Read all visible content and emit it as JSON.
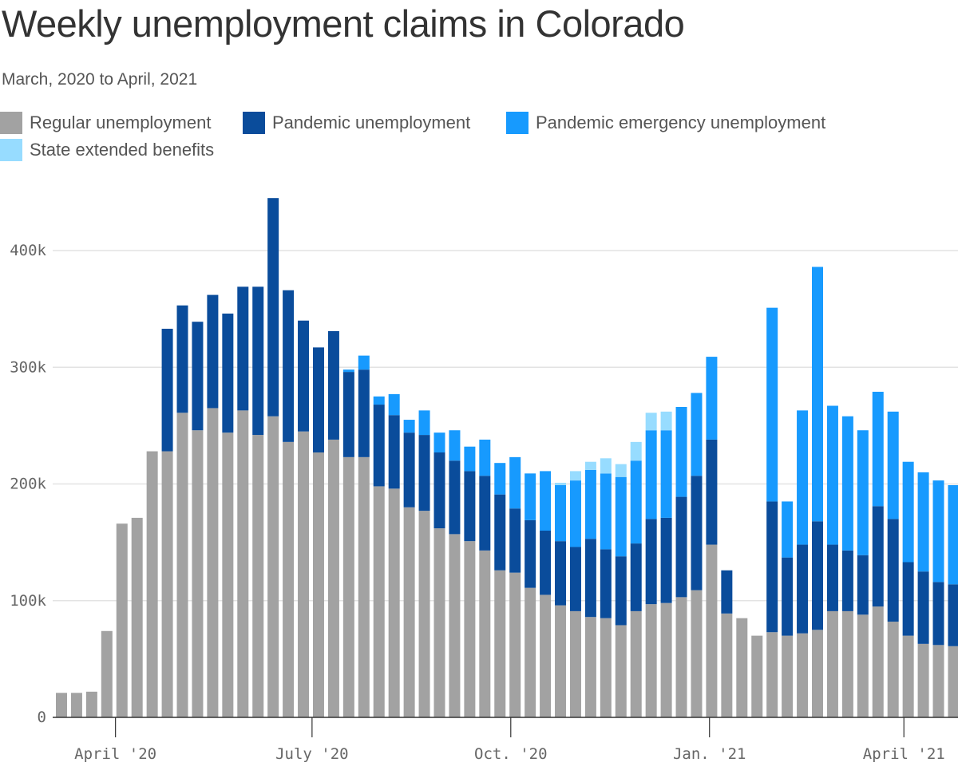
{
  "title": "Weekly unemployment claims in Colorado",
  "subtitle": "March, 2020 to April, 2021",
  "legend": [
    {
      "label": "Regular unemployment",
      "color": "#a2a2a2"
    },
    {
      "label": "Pandemic unemployment",
      "color": "#0a4c9b"
    },
    {
      "label": "Pandemic emergency unemployment",
      "color": "#179afe"
    },
    {
      "label": "State extended benefits",
      "color": "#97dcff"
    }
  ],
  "chart_data": {
    "type": "bar",
    "stacked": true,
    "title": "Weekly unemployment claims in Colorado",
    "subtitle": "March, 2020 to April, 2021",
    "xlabel": "",
    "ylabel": "",
    "ylim": [
      0,
      450000
    ],
    "y_ticks": [
      0,
      100000,
      200000,
      300000,
      400000
    ],
    "y_tick_labels": [
      "0",
      "100k",
      "200k",
      "300k",
      "400k"
    ],
    "x_tick_labels": [
      "April '20",
      "July '20",
      "Oct. '20",
      "Jan. '21",
      "April '21"
    ],
    "x_tick_dates": [
      "2020-04-01",
      "2020-07-01",
      "2020-10-01",
      "2021-01-01",
      "2021-04-01"
    ],
    "first_week": "2020-03-07",
    "grid": true,
    "legend_position": "top-left",
    "series": [
      {
        "name": "Regular unemployment",
        "color": "#a2a2a2",
        "values": [
          21000,
          21000,
          22000,
          74000,
          166000,
          171000,
          228000,
          228000,
          261000,
          246000,
          265000,
          244000,
          263000,
          242000,
          258000,
          236000,
          245000,
          227000,
          238000,
          223000,
          223000,
          198000,
          196000,
          180000,
          177000,
          162000,
          157000,
          151000,
          143000,
          126000,
          124000,
          111000,
          105000,
          96000,
          91000,
          86000,
          85000,
          79000,
          91000,
          97000,
          98000,
          103000,
          109000,
          148000,
          89000,
          85000,
          70000,
          73000,
          70000,
          72000,
          75000,
          91000,
          91000,
          88000,
          95000,
          82000,
          70000,
          63000,
          62000,
          61000
        ]
      },
      {
        "name": "Pandemic unemployment",
        "color": "#0a4c9b",
        "values": [
          0,
          0,
          0,
          0,
          0,
          0,
          0,
          105000,
          92000,
          93000,
          97000,
          102000,
          106000,
          127000,
          187000,
          130000,
          95000,
          90000,
          93000,
          73000,
          75000,
          70000,
          63000,
          64000,
          65000,
          65000,
          63000,
          60000,
          64000,
          65000,
          55000,
          58000,
          55000,
          55000,
          55000,
          67000,
          59000,
          59000,
          58000,
          73000,
          73000,
          86000,
          98000,
          90000,
          37000,
          0,
          0,
          112000,
          67000,
          76000,
          93000,
          57000,
          52000,
          51000,
          86000,
          88000,
          63000,
          62000,
          54000,
          53000
        ]
      },
      {
        "name": "Pandemic emergency unemployment",
        "color": "#179afe",
        "values": [
          0,
          0,
          0,
          0,
          0,
          0,
          0,
          0,
          0,
          0,
          0,
          0,
          0,
          0,
          0,
          0,
          0,
          0,
          0,
          2000,
          12000,
          7000,
          18000,
          11000,
          21000,
          17000,
          26000,
          21000,
          31000,
          27000,
          44000,
          40000,
          51000,
          48000,
          57000,
          59000,
          65000,
          68000,
          71000,
          76000,
          75000,
          77000,
          71000,
          71000,
          0,
          0,
          0,
          166000,
          48000,
          115000,
          218000,
          119000,
          115000,
          107000,
          98000,
          92000,
          86000,
          85000,
          87000,
          85000
        ]
      },
      {
        "name": "State extended benefits",
        "color": "#97dcff",
        "values": [
          0,
          0,
          0,
          0,
          0,
          0,
          0,
          0,
          0,
          0,
          0,
          0,
          0,
          0,
          0,
          0,
          0,
          0,
          0,
          0,
          0,
          0,
          0,
          0,
          0,
          0,
          0,
          0,
          0,
          0,
          0,
          0,
          0,
          2000,
          8000,
          7000,
          13000,
          11000,
          16000,
          15000,
          16000,
          0,
          0,
          0,
          0,
          0,
          0,
          0,
          0,
          0,
          0,
          0,
          0,
          0,
          0,
          0,
          0,
          0,
          0,
          0
        ]
      }
    ]
  }
}
